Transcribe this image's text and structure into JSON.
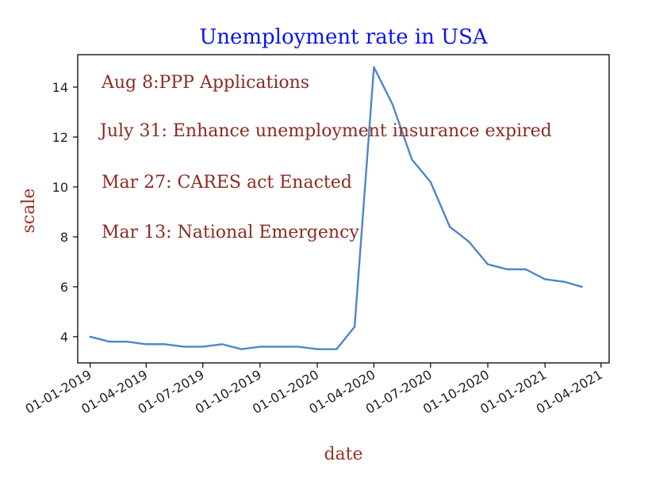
{
  "chart_data": {
    "type": "line",
    "title": "Unemployment rate in USA",
    "xlabel": "date",
    "ylabel": "scale",
    "x_ticks": [
      "01-01-2019",
      "01-04-2019",
      "01-07-2019",
      "01-10-2019",
      "01-01-2020",
      "01-04-2020",
      "01-07-2020",
      "01-10-2020",
      "01-01-2021",
      "01-04-2021"
    ],
    "y_ticks": [
      4,
      6,
      8,
      10,
      12,
      14
    ],
    "xlim": [
      "2018-12-12",
      "2021-04-14"
    ],
    "ylim": [
      2.95,
      15.3
    ],
    "grid": false,
    "legend": "none",
    "line_color": "#4f86c6",
    "annotation_color": "#8b2a22",
    "title_color": "#0a14f0",
    "series": [
      {
        "x": [
          "2019-01-01",
          "2019-02-01",
          "2019-03-01",
          "2019-04-01",
          "2019-05-01",
          "2019-06-01",
          "2019-07-01",
          "2019-08-01",
          "2019-09-01",
          "2019-10-01",
          "2019-11-01",
          "2019-12-01",
          "2020-01-01",
          "2020-02-01",
          "2020-03-01",
          "2020-04-01",
          "2020-05-01",
          "2020-06-01",
          "2020-07-01",
          "2020-08-01",
          "2020-09-01",
          "2020-10-01",
          "2020-11-01",
          "2020-12-01",
          "2021-01-01",
          "2021-02-01",
          "2021-03-01"
        ],
        "y": [
          4.0,
          3.8,
          3.8,
          3.7,
          3.7,
          3.6,
          3.6,
          3.7,
          3.5,
          3.6,
          3.6,
          3.6,
          3.5,
          3.5,
          4.4,
          14.8,
          13.3,
          11.1,
          10.2,
          8.4,
          7.8,
          6.9,
          6.7,
          6.7,
          6.3,
          6.2,
          6.0
        ]
      }
    ],
    "annotations": [
      "Aug 8:PPP Applications",
      "July 31: Enhance unemployment insurance expired",
      "Mar 27: CARES act Enacted",
      "Mar 13: National Emergency"
    ]
  }
}
